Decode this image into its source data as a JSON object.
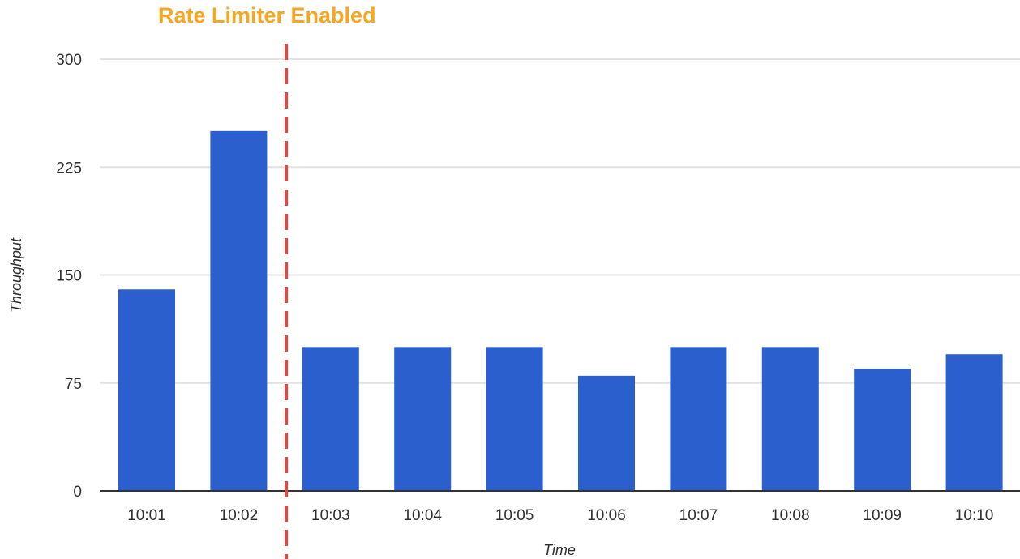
{
  "chart_data": {
    "type": "bar",
    "categories": [
      "10:01",
      "10:02",
      "10:03",
      "10:04",
      "10:05",
      "10:06",
      "10:07",
      "10:08",
      "10:09",
      "10:10"
    ],
    "values": [
      140,
      250,
      100,
      100,
      100,
      80,
      100,
      100,
      85,
      95
    ],
    "xlabel": "Time",
    "ylabel": "Throughput",
    "ylim": [
      0,
      300
    ],
    "yticks": [
      0,
      75,
      150,
      225,
      300
    ],
    "grid": true,
    "legend": "none",
    "bar_color": "#2b5fce",
    "annotation": {
      "text": "Rate Limiter Enabled",
      "color": "#f5a623",
      "line_color": "#dd4a45",
      "line_style": "dashed",
      "between_categories": [
        "10:02",
        "10:03"
      ]
    }
  }
}
